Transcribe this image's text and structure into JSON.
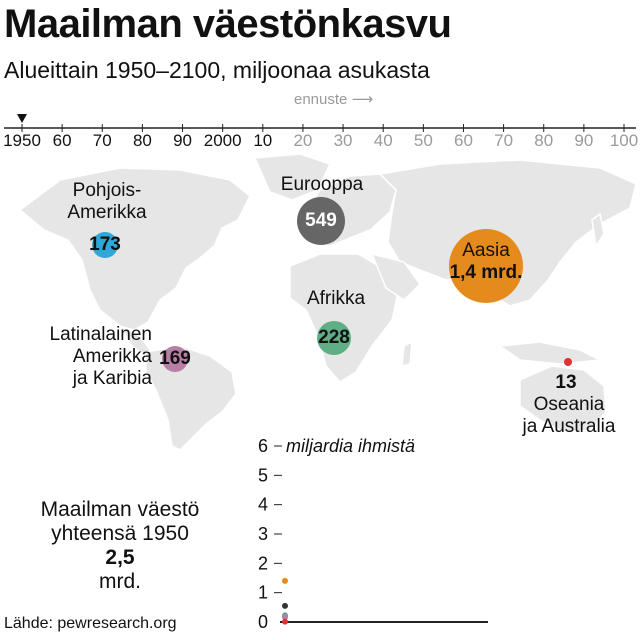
{
  "title": "Maailman väestönkasvu",
  "subtitle": "Alueittain 1950–2100, miljoonaa asukasta",
  "forecast_label": "ennuste",
  "timeline": {
    "current": "1950",
    "ticks": [
      "1950",
      "60",
      "70",
      "80",
      "90",
      "2000",
      "10",
      "20",
      "30",
      "40",
      "50",
      "60",
      "70",
      "80",
      "90",
      "100"
    ],
    "forecast_from_index": 7
  },
  "regions": [
    {
      "name": "Pohjois-\nAmerikka",
      "value": "173",
      "color": "#2ea8d8"
    },
    {
      "name": "Eurooppa",
      "value": "549",
      "color": "#666666"
    },
    {
      "name": "Aasia",
      "value": "1,4 mrd.",
      "color": "#e58a1c"
    },
    {
      "name": "Afrikka",
      "value": "228",
      "color": "#5fae86"
    },
    {
      "name": "Latinalainen\nAmerikka\nja Karibia",
      "value": "169",
      "color": "#b77ea6"
    },
    {
      "name": "Oseania\nja Australia",
      "value": "13",
      "color": "#e03030"
    }
  ],
  "chart_data": {
    "type": "scatter",
    "title": "",
    "ylabel": "miljardia ihmistä",
    "ylim": [
      0,
      6
    ],
    "yticks": [
      "0",
      "1",
      "2",
      "3",
      "4",
      "5",
      "6"
    ],
    "year": "1950",
    "series": [
      {
        "name": "Aasia",
        "values": [
          1.4
        ],
        "color": "#e58a1c"
      },
      {
        "name": "Eurooppa",
        "values": [
          0.549
        ],
        "color": "#333333"
      },
      {
        "name": "Afrikka",
        "values": [
          0.228
        ],
        "color": "#5fae86"
      },
      {
        "name": "Pohjois-Amerikka",
        "values": [
          0.173
        ],
        "color": "#2ea8d8"
      },
      {
        "name": "Latinalainen Amerikka ja Karibia",
        "values": [
          0.169
        ],
        "color": "#b77ea6"
      },
      {
        "name": "Oseania ja Australia",
        "values": [
          0.013
        ],
        "color": "#e03030"
      }
    ]
  },
  "total": {
    "line1": "Maailman väestö",
    "line2": "yhteensä 1950",
    "value": "2,5",
    "unit": "mrd."
  },
  "source": "Lähde: pewresearch.org"
}
